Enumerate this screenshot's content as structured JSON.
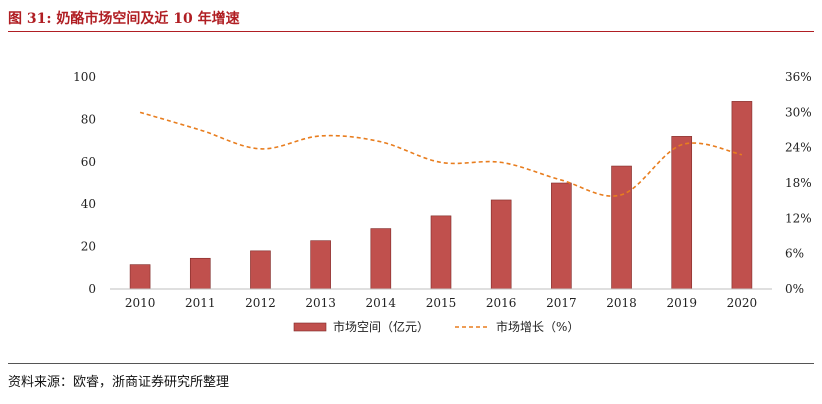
{
  "figure": {
    "title": "图 31:  奶酪市场空间及近 10 年增速",
    "source": "资料来源：欧睿，浙商证券研究所整理"
  },
  "chart_data": {
    "type": "bar",
    "categories": [
      "2010",
      "2011",
      "2012",
      "2013",
      "2014",
      "2015",
      "2016",
      "2017",
      "2018",
      "2019",
      "2020"
    ],
    "series": [
      {
        "name": "市场空间（亿元）",
        "type": "bar",
        "axis": "left",
        "color": "#c0504d",
        "values": [
          11.5,
          14.5,
          18.0,
          22.8,
          28.5,
          34.5,
          42.0,
          50.0,
          58.0,
          72.0,
          88.5
        ]
      },
      {
        "name": "市场增长（%）",
        "type": "line",
        "axis": "right",
        "color": "#e87d1e",
        "style": "dashed",
        "values": [
          30.0,
          27.0,
          23.8,
          26.0,
          25.0,
          21.5,
          21.5,
          18.5,
          16.0,
          24.5,
          22.8
        ]
      }
    ],
    "y_left": {
      "min": 0,
      "max": 100,
      "ticks": [
        "0",
        "20",
        "40",
        "60",
        "80",
        "100"
      ]
    },
    "y_right": {
      "min": 0,
      "max": 36,
      "ticks": [
        "0%",
        "6%",
        "12%",
        "18%",
        "24%",
        "30%",
        "36%"
      ]
    },
    "grid": false,
    "legend": "bottom-center"
  }
}
